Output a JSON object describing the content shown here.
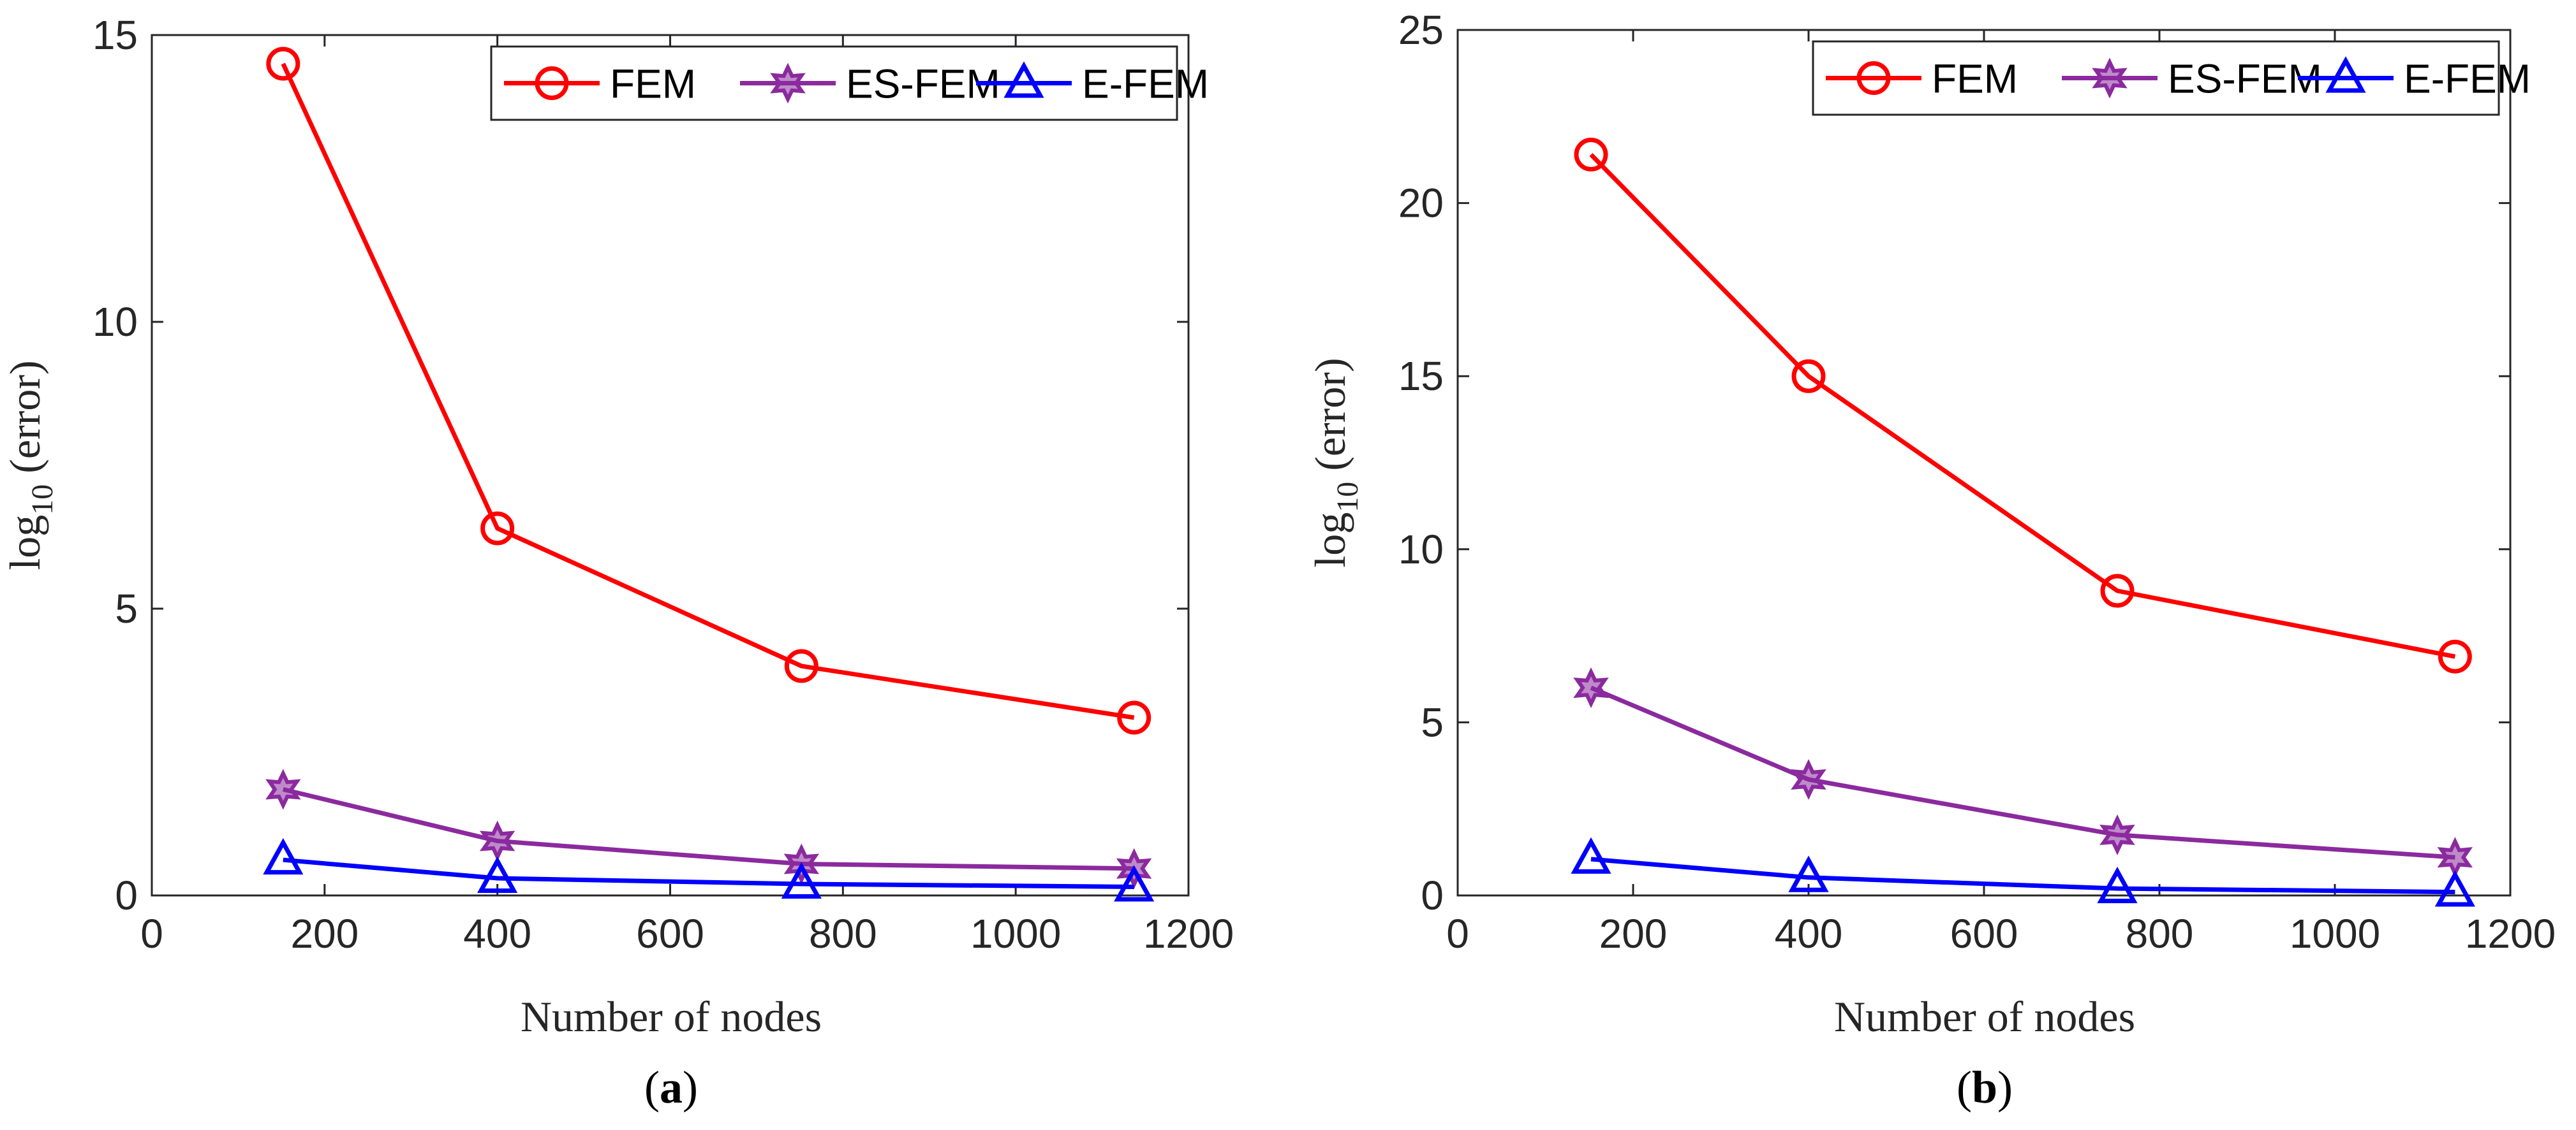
{
  "chart_data": [
    {
      "type": "line",
      "panel_label": "a",
      "x": [
        152,
        400,
        752,
        1137
      ],
      "xlim": [
        0,
        1200
      ],
      "xticks": [
        0,
        200,
        400,
        600,
        800,
        1000,
        1200
      ],
      "ylim": [
        0,
        15
      ],
      "yticks": [
        0,
        5,
        10,
        15
      ],
      "xlabel": "Number of nodes",
      "ylabel_main": "log",
      "ylabel_sub": "10",
      "ylabel_rest": " (error)",
      "legend_position": "top-right",
      "series": [
        {
          "name": "FEM",
          "color": "#ff0000",
          "marker": "circle",
          "values": [
            14.5,
            6.4,
            4.0,
            3.1
          ]
        },
        {
          "name": "ES-FEM",
          "color": "#8b2a9e",
          "marker": "hexagram",
          "values": [
            1.85,
            0.95,
            0.55,
            0.47
          ]
        },
        {
          "name": "E-FEM",
          "color": "#0000ff",
          "marker": "triangle",
          "values": [
            0.62,
            0.3,
            0.2,
            0.15
          ]
        }
      ]
    },
    {
      "type": "line",
      "panel_label": "b",
      "x": [
        152,
        400,
        752,
        1137
      ],
      "xlim": [
        0,
        1200
      ],
      "xticks": [
        0,
        200,
        400,
        600,
        800,
        1000,
        1200
      ],
      "ylim": [
        0,
        25
      ],
      "yticks": [
        0,
        5,
        10,
        15,
        20,
        25
      ],
      "xlabel": "Number of nodes",
      "ylabel_main": "log",
      "ylabel_sub": "10",
      "ylabel_rest": " (error)",
      "legend_position": "top-right",
      "series": [
        {
          "name": "FEM",
          "color": "#ff0000",
          "marker": "circle",
          "values": [
            21.4,
            15.0,
            8.8,
            6.9
          ]
        },
        {
          "name": "ES-FEM",
          "color": "#8b2a9e",
          "marker": "hexagram",
          "values": [
            6.0,
            3.35,
            1.75,
            1.1
          ]
        },
        {
          "name": "E-FEM",
          "color": "#0000ff",
          "marker": "triangle",
          "values": [
            1.05,
            0.52,
            0.2,
            0.1
          ]
        }
      ]
    }
  ]
}
